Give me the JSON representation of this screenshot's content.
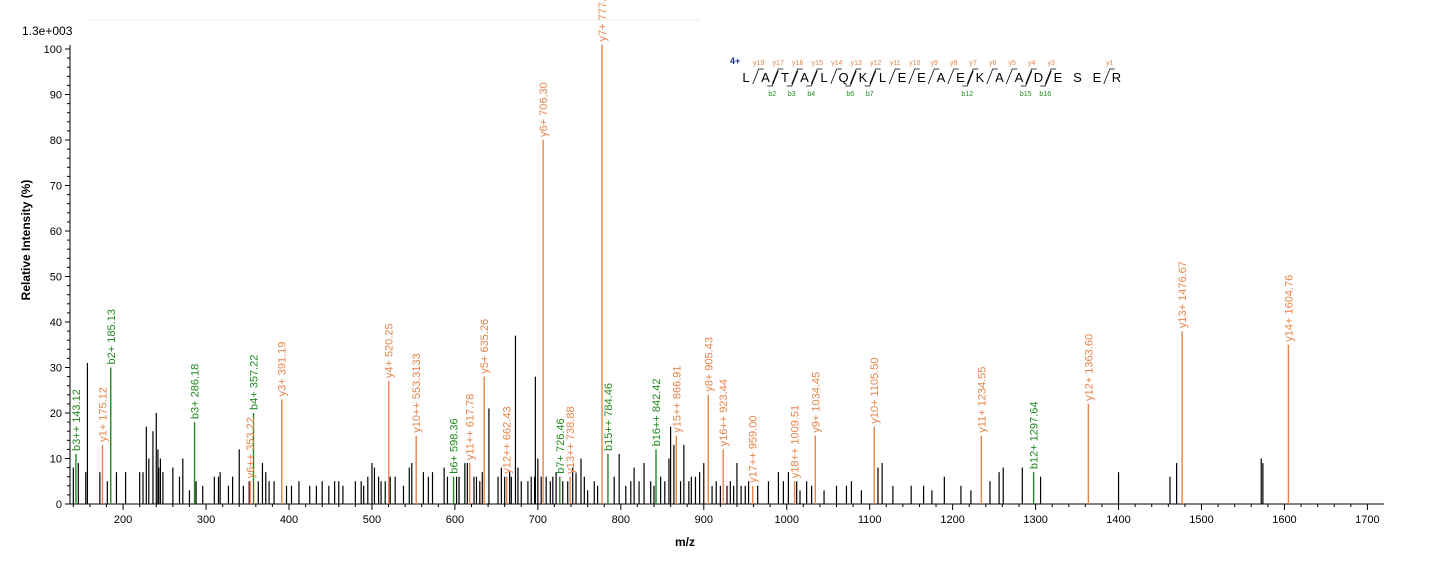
{
  "chart_data": {
    "type": "bar",
    "title": "",
    "scale_label": "1.3e+003",
    "xlabel": "m/z",
    "ylabel": "Relative   Intensity (%)",
    "xlim": [
      136,
      1720
    ],
    "ylim": [
      0,
      100
    ],
    "x_ticks": [
      200,
      300,
      400,
      500,
      600,
      700,
      800,
      900,
      1000,
      1100,
      1200,
      1300,
      1400,
      1500,
      1600,
      1700
    ],
    "y_ticks": [
      0,
      10,
      20,
      30,
      40,
      50,
      60,
      70,
      80,
      90,
      100
    ],
    "colors": {
      "y_ion": "#e8844a",
      "b_ion": "#1f8a1f",
      "unassigned": "#000000",
      "charge": "#1a2c9a"
    },
    "annotated_peaks": [
      {
        "mz": 143.12,
        "intensity": 11,
        "ion": "b",
        "label": "b3++ 143.12"
      },
      {
        "mz": 175.12,
        "intensity": 13,
        "ion": "y",
        "label": "y1+ 175.12"
      },
      {
        "mz": 185.13,
        "intensity": 30,
        "ion": "b",
        "label": "b2+ 185.13"
      },
      {
        "mz": 286.18,
        "intensity": 18,
        "ion": "b",
        "label": "b3+ 286.18"
      },
      {
        "mz": 353.22,
        "intensity": 5,
        "ion": "y",
        "label": "y6++ 353.22"
      },
      {
        "mz": 357.22,
        "intensity": 20,
        "ion": "b",
        "label": "b4+ 357.22"
      },
      {
        "mz": 391.19,
        "intensity": 23,
        "ion": "y",
        "label": "y3+ 391.19"
      },
      {
        "mz": 520.25,
        "intensity": 27,
        "ion": "y",
        "label": "y4+ 520.25"
      },
      {
        "mz": 553.31,
        "intensity": 15,
        "ion": "y",
        "label": "y10++ 553.3133"
      },
      {
        "mz": 598.36,
        "intensity": 6,
        "ion": "b",
        "label": "b6+ 598.36"
      },
      {
        "mz": 617.78,
        "intensity": 9,
        "ion": "y",
        "label": "y11++ 617.78"
      },
      {
        "mz": 635.26,
        "intensity": 28,
        "ion": "y",
        "label": "y5+ 635.26"
      },
      {
        "mz": 662.43,
        "intensity": 6,
        "ion": "y",
        "label": "y12++ 662.43"
      },
      {
        "mz": 706.3,
        "intensity": 80,
        "ion": "y",
        "label": "y6+ 706.30"
      },
      {
        "mz": 726.46,
        "intensity": 6,
        "ion": "b",
        "label": "b7+ 726.46"
      },
      {
        "mz": 738.88,
        "intensity": 6,
        "ion": "y",
        "label": "y13++ 738.88"
      },
      {
        "mz": 777.33,
        "intensity": 101,
        "ion": "y",
        "label": "y7+ 777.33"
      },
      {
        "mz": 784.46,
        "intensity": 11,
        "ion": "b",
        "label": "b15++ 784.46"
      },
      {
        "mz": 842.42,
        "intensity": 12,
        "ion": "b",
        "label": "b16++ 842.42"
      },
      {
        "mz": 866.91,
        "intensity": 15,
        "ion": "y",
        "label": "y15++ 866.91"
      },
      {
        "mz": 905.43,
        "intensity": 24,
        "ion": "y",
        "label": "y8+ 905.43"
      },
      {
        "mz": 923.44,
        "intensity": 12,
        "ion": "y",
        "label": "y16++ 923.44"
      },
      {
        "mz": 959.0,
        "intensity": 4,
        "ion": "y",
        "label": "y17++ 959.00"
      },
      {
        "mz": 1009.51,
        "intensity": 5,
        "ion": "y",
        "label": "y18++ 1009.51"
      },
      {
        "mz": 1034.45,
        "intensity": 15,
        "ion": "y",
        "label": "y9+ 1034.45"
      },
      {
        "mz": 1105.5,
        "intensity": 17,
        "ion": "y",
        "label": "y10+ 1105.50"
      },
      {
        "mz": 1234.55,
        "intensity": 15,
        "ion": "y",
        "label": "y11+ 1234.55"
      },
      {
        "mz": 1297.64,
        "intensity": 7,
        "ion": "b",
        "label": "b12+ 1297.64"
      },
      {
        "mz": 1363.6,
        "intensity": 22,
        "ion": "y",
        "label": "y12+ 1363.60"
      },
      {
        "mz": 1476.67,
        "intensity": 38,
        "ion": "y",
        "label": "y13+ 1476.67"
      },
      {
        "mz": 1604.76,
        "intensity": 35,
        "ion": "y",
        "label": "y14+ 1604.76"
      }
    ],
    "unlabeled_peaks": [
      [
        140,
        8
      ],
      [
        146,
        9
      ],
      [
        155,
        7
      ],
      [
        157,
        31
      ],
      [
        172,
        7
      ],
      [
        181,
        5
      ],
      [
        192,
        7
      ],
      [
        203,
        7
      ],
      [
        220,
        7
      ],
      [
        224,
        7
      ],
      [
        228,
        17
      ],
      [
        231,
        10
      ],
      [
        236,
        16
      ],
      [
        240,
        20
      ],
      [
        242,
        12
      ],
      [
        243,
        8
      ],
      [
        245,
        10
      ],
      [
        248,
        7
      ],
      [
        260,
        8
      ],
      [
        268,
        6
      ],
      [
        272,
        10
      ],
      [
        280,
        3
      ],
      [
        288,
        5
      ],
      [
        296,
        4
      ],
      [
        310,
        6
      ],
      [
        315,
        6
      ],
      [
        317,
        7
      ],
      [
        327,
        4
      ],
      [
        332,
        6
      ],
      [
        340,
        12
      ],
      [
        345,
        4
      ],
      [
        352,
        5
      ],
      [
        363,
        5
      ],
      [
        368,
        9
      ],
      [
        372,
        7
      ],
      [
        376,
        5
      ],
      [
        382,
        5
      ],
      [
        397,
        4
      ],
      [
        403,
        4
      ],
      [
        412,
        5
      ],
      [
        425,
        4
      ],
      [
        433,
        4
      ],
      [
        440,
        5
      ],
      [
        448,
        4
      ],
      [
        455,
        5
      ],
      [
        460,
        5
      ],
      [
        465,
        4
      ],
      [
        480,
        5
      ],
      [
        487,
        5
      ],
      [
        490,
        4
      ],
      [
        495,
        6
      ],
      [
        500,
        9
      ],
      [
        503,
        8
      ],
      [
        508,
        6
      ],
      [
        511,
        5
      ],
      [
        516,
        5
      ],
      [
        522,
        6
      ],
      [
        528,
        6
      ],
      [
        538,
        4
      ],
      [
        545,
        8
      ],
      [
        548,
        9
      ],
      [
        562,
        7
      ],
      [
        568,
        6
      ],
      [
        573,
        7
      ],
      [
        587,
        8
      ],
      [
        591,
        6
      ],
      [
        602,
        6
      ],
      [
        605,
        6
      ],
      [
        612,
        9
      ],
      [
        615,
        9
      ],
      [
        623,
        6
      ],
      [
        626,
        6
      ],
      [
        630,
        5
      ],
      [
        633,
        7
      ],
      [
        641,
        21
      ],
      [
        652,
        6
      ],
      [
        656,
        8
      ],
      [
        660,
        6
      ],
      [
        666,
        7
      ],
      [
        668,
        6
      ],
      [
        673,
        37
      ],
      [
        676,
        8
      ],
      [
        680,
        5
      ],
      [
        688,
        5
      ],
      [
        692,
        6
      ],
      [
        696,
        6
      ],
      [
        697,
        28
      ],
      [
        700,
        10
      ],
      [
        704,
        6
      ],
      [
        710,
        6
      ],
      [
        715,
        5
      ],
      [
        718,
        6
      ],
      [
        722,
        7
      ],
      [
        730,
        5
      ],
      [
        736,
        5
      ],
      [
        742,
        8
      ],
      [
        746,
        7
      ],
      [
        752,
        10
      ],
      [
        756,
        6
      ],
      [
        760,
        3
      ],
      [
        768,
        5
      ],
      [
        772,
        4
      ],
      [
        792,
        6
      ],
      [
        798,
        11
      ],
      [
        806,
        4
      ],
      [
        812,
        5
      ],
      [
        816,
        8
      ],
      [
        822,
        5
      ],
      [
        828,
        9
      ],
      [
        836,
        5
      ],
      [
        840,
        4
      ],
      [
        848,
        6
      ],
      [
        853,
        5
      ],
      [
        858,
        10
      ],
      [
        860,
        17
      ],
      [
        864,
        13
      ],
      [
        872,
        5
      ],
      [
        876,
        13
      ],
      [
        882,
        5
      ],
      [
        885,
        6
      ],
      [
        890,
        6
      ],
      [
        895,
        7
      ],
      [
        900,
        9
      ],
      [
        910,
        4
      ],
      [
        915,
        5
      ],
      [
        920,
        4
      ],
      [
        928,
        4
      ],
      [
        932,
        5
      ],
      [
        936,
        4
      ],
      [
        940,
        9
      ],
      [
        945,
        4
      ],
      [
        950,
        4
      ],
      [
        954,
        5
      ],
      [
        965,
        4
      ],
      [
        978,
        5
      ],
      [
        990,
        7
      ],
      [
        996,
        5
      ],
      [
        1002,
        7
      ],
      [
        1012,
        5
      ],
      [
        1016,
        3
      ],
      [
        1024,
        5
      ],
      [
        1030,
        4
      ],
      [
        1045,
        3
      ],
      [
        1060,
        4
      ],
      [
        1072,
        4
      ],
      [
        1078,
        5
      ],
      [
        1090,
        3
      ],
      [
        1110,
        8
      ],
      [
        1115,
        9
      ],
      [
        1128,
        4
      ],
      [
        1150,
        4
      ],
      [
        1165,
        4
      ],
      [
        1175,
        3
      ],
      [
        1190,
        6
      ],
      [
        1210,
        4
      ],
      [
        1222,
        3
      ],
      [
        1245,
        5
      ],
      [
        1256,
        7
      ],
      [
        1261,
        8
      ],
      [
        1284,
        8
      ],
      [
        1306,
        6
      ],
      [
        1400,
        7
      ],
      [
        1462,
        6
      ],
      [
        1470,
        9
      ],
      [
        1572,
        10
      ],
      [
        1574,
        9
      ]
    ],
    "sequence": {
      "charge": "4+",
      "residues": [
        "L",
        "A",
        "T",
        "A",
        "L",
        "Q",
        "K",
        "L",
        "E",
        "E",
        "A",
        "E",
        "K",
        "A",
        "A",
        "D",
        "E",
        "S",
        "E",
        "R"
      ],
      "y_ions": [
        {
          "after": 1,
          "label": "y19"
        },
        {
          "after": 2,
          "label": "y17"
        },
        {
          "after": 3,
          "label": "y16"
        },
        {
          "after": 4,
          "label": "y15"
        },
        {
          "after": 5,
          "label": "y14"
        },
        {
          "after": 6,
          "label": "y13"
        },
        {
          "after": 7,
          "label": "y12"
        },
        {
          "after": 8,
          "label": "y11"
        },
        {
          "after": 9,
          "label": "y10"
        },
        {
          "after": 10,
          "label": "y9"
        },
        {
          "after": 11,
          "label": "y8"
        },
        {
          "after": 12,
          "label": "y7"
        },
        {
          "after": 13,
          "label": "y6"
        },
        {
          "after": 14,
          "label": "y5"
        },
        {
          "after": 15,
          "label": "y4"
        },
        {
          "after": 16,
          "label": "y3"
        },
        {
          "after": 19,
          "label": "y1"
        }
      ],
      "b_ions": [
        {
          "after": 2,
          "label": "b2"
        },
        {
          "after": 3,
          "label": "b3"
        },
        {
          "after": 4,
          "label": "b4"
        },
        {
          "after": 6,
          "label": "b6"
        },
        {
          "after": 7,
          "label": "b7"
        },
        {
          "after": 12,
          "label": "b12"
        },
        {
          "after": 15,
          "label": "b15"
        },
        {
          "after": 16,
          "label": "b16"
        }
      ]
    }
  }
}
